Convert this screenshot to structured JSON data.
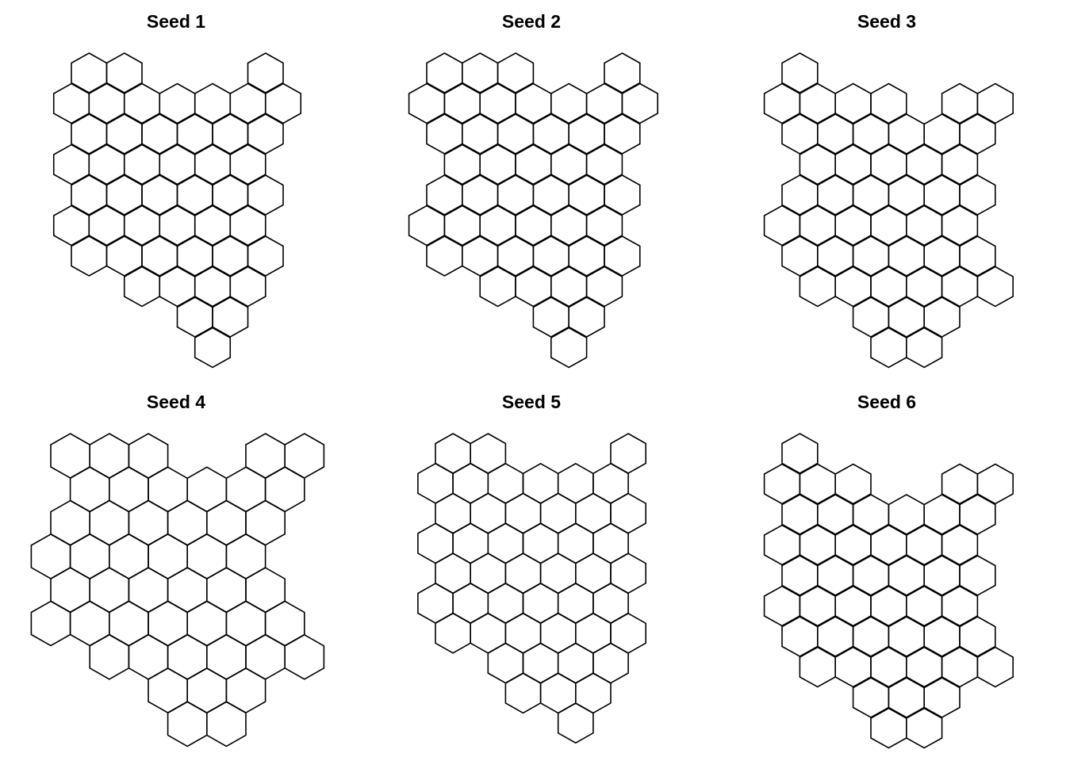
{
  "figure": {
    "background": "#ffffff",
    "outline_color": "#000000",
    "panels": [
      {
        "title": "Seed 1",
        "orientation": "pointy-top",
        "rows": [
          {
            "row": 0,
            "cols": [
              1,
              3,
              11
            ]
          },
          {
            "row": 1,
            "cols": [
              0,
              2,
              4,
              6,
              8,
              10,
              12
            ]
          },
          {
            "row": 2,
            "cols": [
              1,
              3,
              5,
              7,
              9,
              11
            ]
          },
          {
            "row": 3,
            "cols": [
              0,
              2,
              4,
              6,
              8,
              10
            ]
          },
          {
            "row": 4,
            "cols": [
              1,
              3,
              5,
              7,
              9,
              11
            ]
          },
          {
            "row": 5,
            "cols": [
              0,
              2,
              4,
              6,
              8,
              10
            ]
          },
          {
            "row": 6,
            "cols": [
              1,
              3,
              5,
              7,
              9,
              11
            ]
          },
          {
            "row": 7,
            "cols": [
              4,
              6,
              8,
              10
            ]
          },
          {
            "row": 8,
            "cols": [
              7,
              9
            ]
          },
          {
            "row": 9,
            "cols": [
              8
            ]
          }
        ]
      },
      {
        "title": "Seed 2",
        "orientation": "pointy-top",
        "rows": [
          {
            "row": 0,
            "cols": [
              1,
              3,
              5,
              11
            ]
          },
          {
            "row": 1,
            "cols": [
              0,
              2,
              4,
              6,
              8,
              10,
              12
            ]
          },
          {
            "row": 2,
            "cols": [
              1,
              3,
              5,
              7,
              9,
              11
            ]
          },
          {
            "row": 3,
            "cols": [
              2,
              4,
              6,
              8,
              10
            ]
          },
          {
            "row": 4,
            "cols": [
              1,
              3,
              5,
              7,
              9,
              11
            ]
          },
          {
            "row": 5,
            "cols": [
              0,
              2,
              4,
              6,
              8,
              10
            ]
          },
          {
            "row": 6,
            "cols": [
              1,
              3,
              5,
              7,
              9,
              11
            ]
          },
          {
            "row": 7,
            "cols": [
              4,
              6,
              8,
              10
            ]
          },
          {
            "row": 8,
            "cols": [
              7,
              9
            ]
          },
          {
            "row": 9,
            "cols": [
              8
            ]
          }
        ]
      },
      {
        "title": "Seed 3",
        "orientation": "pointy-top",
        "rows": [
          {
            "row": 0,
            "cols": [
              1
            ]
          },
          {
            "row": 1,
            "cols": [
              0,
              2,
              4,
              6,
              10,
              12
            ]
          },
          {
            "row": 2,
            "cols": [
              1,
              3,
              5,
              7,
              9,
              11
            ]
          },
          {
            "row": 3,
            "cols": [
              2,
              4,
              6,
              8,
              10
            ]
          },
          {
            "row": 4,
            "cols": [
              1,
              3,
              5,
              7,
              9,
              11
            ]
          },
          {
            "row": 5,
            "cols": [
              0,
              2,
              4,
              6,
              8,
              10
            ]
          },
          {
            "row": 6,
            "cols": [
              1,
              3,
              5,
              7,
              9,
              11
            ]
          },
          {
            "row": 7,
            "cols": [
              2,
              4,
              6,
              8,
              10,
              12
            ]
          },
          {
            "row": 8,
            "cols": [
              5,
              7,
              9
            ]
          },
          {
            "row": 9,
            "cols": [
              6,
              8
            ]
          }
        ]
      },
      {
        "title": "Seed 4",
        "orientation": "pointy-top",
        "rows": [
          {
            "row": 0,
            "cols": [
              1,
              3,
              5,
              11,
              13
            ]
          },
          {
            "row": 1,
            "cols": [
              2,
              4,
              6,
              8,
              10,
              12
            ]
          },
          {
            "row": 2,
            "cols": [
              1,
              3,
              5,
              7,
              9,
              11
            ]
          },
          {
            "row": 3,
            "cols": [
              0,
              2,
              4,
              6,
              8,
              10
            ]
          },
          {
            "row": 4,
            "cols": [
              1,
              3,
              5,
              7,
              9,
              11
            ]
          },
          {
            "row": 5,
            "cols": [
              0,
              2,
              4,
              6,
              8,
              10,
              12
            ]
          },
          {
            "row": 6,
            "cols": [
              3,
              5,
              7,
              9,
              11,
              13
            ]
          },
          {
            "row": 7,
            "cols": [
              6,
              8,
              10
            ]
          },
          {
            "row": 8,
            "cols": [
              7,
              9
            ]
          }
        ]
      },
      {
        "title": "Seed 5",
        "orientation": "pointy-top",
        "rows": [
          {
            "row": 0,
            "cols": [
              1,
              3,
              11
            ]
          },
          {
            "row": 1,
            "cols": [
              0,
              2,
              4,
              6,
              8,
              10
            ]
          },
          {
            "row": 2,
            "cols": [
              1,
              3,
              5,
              7,
              9,
              11
            ]
          },
          {
            "row": 3,
            "cols": [
              0,
              2,
              4,
              6,
              8,
              10
            ]
          },
          {
            "row": 4,
            "cols": [
              1,
              3,
              5,
              7,
              9,
              11
            ]
          },
          {
            "row": 5,
            "cols": [
              0,
              2,
              4,
              6,
              8,
              10
            ]
          },
          {
            "row": 6,
            "cols": [
              1,
              3,
              5,
              7,
              9,
              11
            ]
          },
          {
            "row": 7,
            "cols": [
              4,
              6,
              8,
              10
            ]
          },
          {
            "row": 8,
            "cols": [
              5,
              7,
              9
            ]
          },
          {
            "row": 9,
            "cols": [
              8
            ]
          }
        ]
      },
      {
        "title": "Seed 6",
        "orientation": "pointy-top",
        "rows": [
          {
            "row": 0,
            "cols": [
              1
            ]
          },
          {
            "row": 1,
            "cols": [
              0,
              2,
              4,
              10,
              12
            ]
          },
          {
            "row": 2,
            "cols": [
              1,
              3,
              5,
              7,
              9,
              11
            ]
          },
          {
            "row": 3,
            "cols": [
              0,
              2,
              4,
              6,
              8,
              10
            ]
          },
          {
            "row": 4,
            "cols": [
              1,
              3,
              5,
              7,
              9,
              11
            ]
          },
          {
            "row": 5,
            "cols": [
              0,
              2,
              4,
              6,
              8,
              10
            ]
          },
          {
            "row": 6,
            "cols": [
              1,
              3,
              5,
              7,
              9,
              11
            ]
          },
          {
            "row": 7,
            "cols": [
              2,
              4,
              6,
              8,
              10,
              12
            ]
          },
          {
            "row": 8,
            "cols": [
              5,
              7,
              9
            ]
          },
          {
            "row": 9,
            "cols": [
              6,
              8
            ]
          }
        ]
      }
    ]
  }
}
